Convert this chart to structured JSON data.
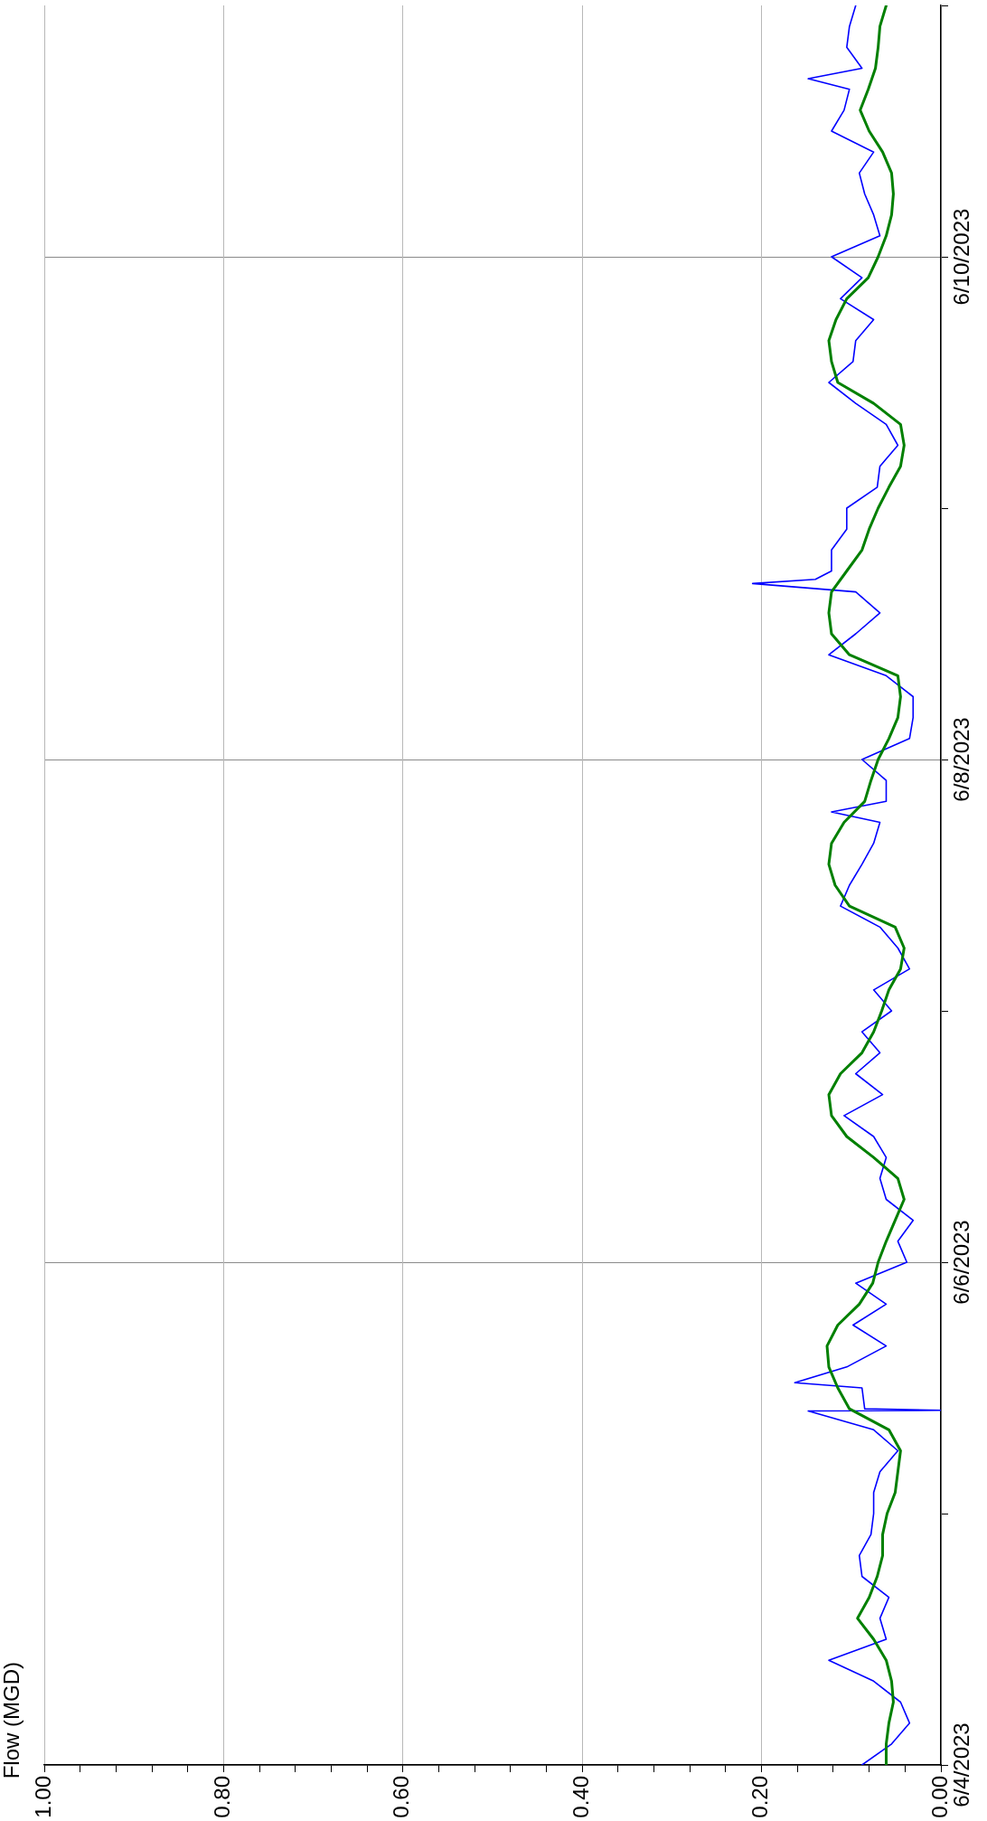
{
  "chart_data": {
    "type": "line",
    "orientation": "horizontal",
    "ylabel": "Flow (MGD)",
    "xlim": [
      1,
      0
    ],
    "xticks": [
      {
        "value": 0,
        "label": "0.00"
      },
      {
        "value": 0.04,
        "label": null
      },
      {
        "value": 0.08,
        "label": null
      },
      {
        "value": 0.12,
        "label": null
      },
      {
        "value": 0.16,
        "label": null
      },
      {
        "value": 0.2,
        "label": "0.20"
      },
      {
        "value": 0.24,
        "label": null
      },
      {
        "value": 0.28,
        "label": null
      },
      {
        "value": 0.32,
        "label": null
      },
      {
        "value": 0.36,
        "label": null
      },
      {
        "value": 0.4,
        "label": "0.40"
      },
      {
        "value": 0.44,
        "label": null
      },
      {
        "value": 0.48,
        "label": null
      },
      {
        "value": 0.52,
        "label": null
      },
      {
        "value": 0.56,
        "label": null
      },
      {
        "value": 0.6,
        "label": "0.60"
      },
      {
        "value": 0.64,
        "label": null
      },
      {
        "value": 0.68,
        "label": null
      },
      {
        "value": 0.72,
        "label": null
      },
      {
        "value": 0.76,
        "label": null
      },
      {
        "value": 0.8,
        "label": "0.80"
      },
      {
        "value": 0.84,
        "label": null
      },
      {
        "value": 0.88,
        "label": null
      },
      {
        "value": 0.92,
        "label": null
      },
      {
        "value": 0.96,
        "label": null
      },
      {
        "value": 1,
        "label": "1.00"
      }
    ],
    "ylim": [
      "2023-06-04",
      "2023-06-11"
    ],
    "yticks": [
      {
        "value": "2023-06-04",
        "label": "6/4/2023"
      },
      {
        "value": "2023-06-05",
        "label": null
      },
      {
        "value": "2023-06-06",
        "label": "6/6/2023"
      },
      {
        "value": "2023-06-07",
        "label": null
      },
      {
        "value": "2023-06-08",
        "label": "6/8/2023"
      },
      {
        "value": "2023-06-09",
        "label": null
      },
      {
        "value": "2023-06-10",
        "label": "6/10/2023"
      },
      {
        "value": "2023-06-11",
        "label": null
      }
    ],
    "grid": true,
    "marker": "none",
    "line_style": "solid",
    "series": [
      {
        "color": "#0000ff",
        "values": [
          0.088,
          0.055,
          0.035,
          0.045,
          0.075,
          0.125,
          0.061,
          0.068,
          0.058,
          0.088,
          0.091,
          0.078,
          0.075,
          0.075,
          0.068,
          0.048,
          0.075,
          0.148,
          0,
          0.085,
          0.088,
          0.163,
          0.105,
          0.061,
          0.098,
          0.061,
          0.095,
          0.038,
          0.048,
          0.031,
          0.061,
          0.068,
          0.061,
          0.075,
          0.108,
          0.065,
          0.095,
          0.068,
          0.088,
          0.055,
          0.075,
          0.035,
          0.048,
          0.068,
          0.112,
          0.102,
          0.088,
          0.075,
          0.068,
          0.122,
          0.061,
          0.061,
          0.088,
          0.035,
          0.031,
          0.031,
          0.061,
          0.125,
          0.095,
          0.068,
          0.095,
          0.21,
          0.14,
          0.122,
          0.122,
          0.105,
          0.105,
          0.071,
          0.068,
          0.048,
          0.061,
          0.095,
          0.125,
          0.098,
          0.095,
          0.075,
          0.112,
          0.088,
          0.122,
          0.068,
          0.075,
          0.085,
          0.091,
          0.075,
          0.122,
          0.108,
          0.102,
          0.148,
          0.088,
          0.105,
          0.102,
          0.095
        ],
        "x": [
          "2023-06-04T00:00",
          "2023-06-04T02:00",
          "2023-06-04T04:00",
          "2023-06-04T06:00",
          "2023-06-04T08:00",
          "2023-06-04T10:00",
          "2023-06-04T12:00",
          "2023-06-04T14:00",
          "2023-06-04T16:00",
          "2023-06-04T18:00",
          "2023-06-04T20:00",
          "2023-06-04T22:00",
          "2023-06-05T00:00",
          "2023-06-05T02:00",
          "2023-06-05T04:00",
          "2023-06-05T06:00",
          "2023-06-05T08:00",
          "2023-06-05T09:48",
          "2023-06-05T09:52",
          "2023-06-05T10:00",
          "2023-06-05T12:00",
          "2023-06-05T12:30",
          "2023-06-05T14:00",
          "2023-06-05T16:00",
          "2023-06-05T18:00",
          "2023-06-05T20:00",
          "2023-06-05T22:00",
          "2023-06-06T00:00",
          "2023-06-06T02:00",
          "2023-06-06T04:00",
          "2023-06-06T06:00",
          "2023-06-06T08:00",
          "2023-06-06T10:00",
          "2023-06-06T12:00",
          "2023-06-06T14:00",
          "2023-06-06T16:00",
          "2023-06-06T18:00",
          "2023-06-06T20:00",
          "2023-06-06T22:00",
          "2023-06-07T00:00",
          "2023-06-07T02:00",
          "2023-06-07T04:00",
          "2023-06-07T06:00",
          "2023-06-07T08:00",
          "2023-06-07T10:00",
          "2023-06-07T12:00",
          "2023-06-07T14:00",
          "2023-06-07T16:00",
          "2023-06-07T18:00",
          "2023-06-07T19:00",
          "2023-06-07T20:00",
          "2023-06-07T22:00",
          "2023-06-08T00:00",
          "2023-06-08T02:00",
          "2023-06-08T04:00",
          "2023-06-08T06:00",
          "2023-06-08T08:00",
          "2023-06-08T10:00",
          "2023-06-08T12:00",
          "2023-06-08T14:00",
          "2023-06-08T16:00",
          "2023-06-08T16:48",
          "2023-06-08T17:12",
          "2023-06-08T18:00",
          "2023-06-08T20:00",
          "2023-06-08T22:00",
          "2023-06-09T00:00",
          "2023-06-09T02:00",
          "2023-06-09T04:00",
          "2023-06-09T06:00",
          "2023-06-09T08:00",
          "2023-06-09T10:00",
          "2023-06-09T12:00",
          "2023-06-09T14:00",
          "2023-06-09T16:00",
          "2023-06-09T18:00",
          "2023-06-09T20:00",
          "2023-06-09T22:00",
          "2023-06-10T00:00",
          "2023-06-10T02:00",
          "2023-06-10T04:00",
          "2023-06-10T06:00",
          "2023-06-10T08:00",
          "2023-06-10T10:00",
          "2023-06-10T12:00",
          "2023-06-10T14:00",
          "2023-06-10T16:00",
          "2023-06-10T17:00",
          "2023-06-10T18:00",
          "2023-06-10T20:00",
          "2023-06-10T22:00",
          "2023-06-11T00:00"
        ]
      },
      {
        "color": "#008000",
        "values": [
          0.061,
          0.061,
          0.058,
          0.053,
          0.055,
          0.061,
          0.075,
          0.093,
          0.08,
          0.071,
          0.065,
          0.065,
          0.06,
          0.051,
          0.048,
          0.045,
          0.058,
          0.102,
          0.115,
          0.125,
          0.127,
          0.115,
          0.091,
          0.076,
          0.07,
          0.061,
          0.051,
          0.041,
          0.048,
          0.075,
          0.105,
          0.122,
          0.125,
          0.112,
          0.088,
          0.075,
          0.066,
          0.058,
          0.045,
          0.041,
          0.051,
          0.102,
          0.118,
          0.125,
          0.122,
          0.108,
          0.085,
          0.078,
          0.07,
          0.058,
          0.048,
          0.045,
          0.048,
          0.102,
          0.122,
          0.125,
          0.122,
          0.105,
          0.088,
          0.08,
          0.07,
          0.058,
          0.045,
          0.041,
          0.045,
          0.075,
          0.115,
          0.122,
          0.125,
          0.117,
          0.105,
          0.081,
          0.07,
          0.061,
          0.055,
          0.053,
          0.055,
          0.065,
          0.08,
          0.09,
          0.081,
          0.073,
          0.07,
          0.068,
          0.061
        ],
        "x": [
          "2023-06-04T00:00",
          "2023-06-04T02:00",
          "2023-06-04T04:00",
          "2023-06-04T06:00",
          "2023-06-04T08:00",
          "2023-06-04T10:00",
          "2023-06-04T12:00",
          "2023-06-04T14:00",
          "2023-06-04T16:00",
          "2023-06-04T18:00",
          "2023-06-04T20:00",
          "2023-06-04T22:00",
          "2023-06-05T00:00",
          "2023-06-05T02:00",
          "2023-06-05T04:00",
          "2023-06-05T06:00",
          "2023-06-05T08:00",
          "2023-06-05T10:00",
          "2023-06-05T12:00",
          "2023-06-05T14:00",
          "2023-06-05T16:00",
          "2023-06-05T18:00",
          "2023-06-05T20:00",
          "2023-06-05T22:00",
          "2023-06-06T00:00",
          "2023-06-06T02:00",
          "2023-06-06T04:00",
          "2023-06-06T06:00",
          "2023-06-06T08:00",
          "2023-06-06T10:00",
          "2023-06-06T12:00",
          "2023-06-06T14:00",
          "2023-06-06T16:00",
          "2023-06-06T18:00",
          "2023-06-06T20:00",
          "2023-06-06T22:00",
          "2023-06-07T00:00",
          "2023-06-07T02:00",
          "2023-06-07T04:00",
          "2023-06-07T06:00",
          "2023-06-07T08:00",
          "2023-06-07T10:00",
          "2023-06-07T12:00",
          "2023-06-07T14:00",
          "2023-06-07T16:00",
          "2023-06-07T18:00",
          "2023-06-07T20:00",
          "2023-06-07T22:00",
          "2023-06-08T00:00",
          "2023-06-08T02:00",
          "2023-06-08T04:00",
          "2023-06-08T06:00",
          "2023-06-08T08:00",
          "2023-06-08T10:00",
          "2023-06-08T12:00",
          "2023-06-08T14:00",
          "2023-06-08T16:00",
          "2023-06-08T18:00",
          "2023-06-08T20:00",
          "2023-06-08T22:00",
          "2023-06-09T00:00",
          "2023-06-09T02:00",
          "2023-06-09T04:00",
          "2023-06-09T06:00",
          "2023-06-09T08:00",
          "2023-06-09T10:00",
          "2023-06-09T12:00",
          "2023-06-09T14:00",
          "2023-06-09T16:00",
          "2023-06-09T18:00",
          "2023-06-09T20:00",
          "2023-06-09T22:00",
          "2023-06-10T00:00",
          "2023-06-10T02:00",
          "2023-06-10T04:00",
          "2023-06-10T06:00",
          "2023-06-10T08:00",
          "2023-06-10T10:00",
          "2023-06-10T12:00",
          "2023-06-10T14:00",
          "2023-06-10T16:00",
          "2023-06-10T18:00",
          "2023-06-10T20:00",
          "2023-06-10T22:00",
          "2023-06-11T00:00"
        ]
      }
    ]
  }
}
